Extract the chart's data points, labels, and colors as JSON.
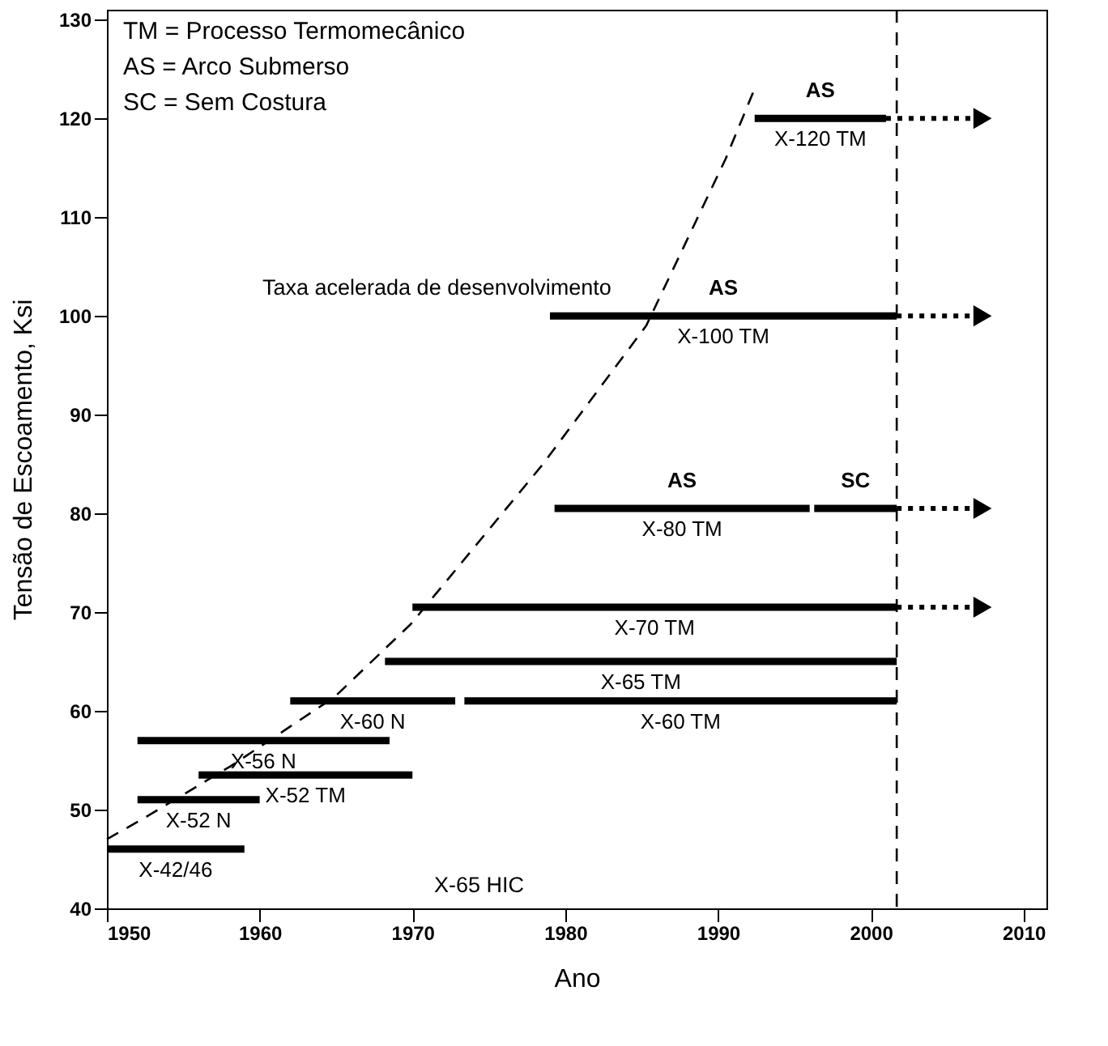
{
  "chart_data": {
    "type": "line",
    "xlabel": "Ano",
    "ylabel": "Tensão de Escoamento, Ksi",
    "xlim": [
      1950,
      2011.5
    ],
    "xticks": [
      1950,
      1960,
      1970,
      1980,
      1990,
      2000,
      2010
    ],
    "ylim": [
      40,
      131
    ],
    "yticks": [
      40,
      50,
      60,
      70,
      80,
      90,
      100,
      110,
      120,
      130
    ],
    "grid": false,
    "line_style": "solid",
    "marker": "none",
    "series": [
      {
        "name": "X-42/46",
        "color": "#000000",
        "x": [
          1950,
          1959
        ],
        "values": [
          46,
          46
        ]
      },
      {
        "name": "X-52 N",
        "color": "#000000",
        "x": [
          1952,
          1960
        ],
        "values": [
          51,
          51
        ]
      },
      {
        "name": "X-52 TM",
        "color": "#000000",
        "x": [
          1956,
          1970
        ],
        "values": [
          53.5,
          53.5
        ]
      },
      {
        "name": "X-56 N",
        "color": "#000000",
        "x": [
          1952,
          1968.5
        ],
        "values": [
          57,
          57
        ]
      },
      {
        "name": "X-60 N",
        "color": "#000000",
        "x": [
          1962,
          1972.8
        ],
        "values": [
          61,
          61
        ]
      },
      {
        "name": "X-60 TM",
        "color": "#000000",
        "x": [
          1973.4,
          2001.7
        ],
        "values": [
          61,
          61
        ]
      },
      {
        "name": "X-65 TM",
        "color": "#000000",
        "x": [
          1968.2,
          2001.7
        ],
        "values": [
          65,
          65
        ]
      },
      {
        "name": "X-70 TM",
        "color": "#000000",
        "x": [
          1970,
          2001.7
        ],
        "values": [
          70.5,
          70.5
        ]
      },
      {
        "color": "#000000",
        "x": [
          2001.7,
          2007
        ],
        "values": [
          70.5,
          70.5
        ],
        "line_style": "dotted",
        "marker": "triangle"
      },
      {
        "name": "X-80 TM",
        "color": "#000000",
        "x": [
          1979.3,
          1996
        ],
        "values": [
          80.5,
          80.5
        ]
      },
      {
        "color": "#000000",
        "x": [
          1996.3,
          2001.7
        ],
        "values": [
          80.5,
          80.5
        ]
      },
      {
        "color": "#000000",
        "x": [
          2001.7,
          2007
        ],
        "values": [
          80.5,
          80.5
        ],
        "line_style": "dotted",
        "marker": "triangle"
      },
      {
        "name": "X-100 TM",
        "color": "#000000",
        "x": [
          1979,
          2001.7
        ],
        "values": [
          100,
          100
        ]
      },
      {
        "color": "#000000",
        "x": [
          2001.7,
          2007
        ],
        "values": [
          100,
          100
        ],
        "line_style": "dotted",
        "marker": "triangle"
      },
      {
        "name": "X-120 TM",
        "color": "#000000",
        "x": [
          1992.4,
          2001
        ],
        "values": [
          120,
          120
        ]
      },
      {
        "color": "#000000",
        "x": [
          2001,
          2007
        ],
        "values": [
          120,
          120
        ],
        "line_style": "dotted",
        "marker": "triangle"
      },
      {
        "color": "#000000",
        "x": [
          1950,
          1952.5,
          1958.1,
          1964.9,
          1969.9,
          1978.5,
          1985.3,
          1990.5,
          1992.4
        ],
        "values": [
          47,
          49.2,
          54.4,
          61.4,
          68.8,
          84.9,
          99,
          115.9,
          123
        ],
        "line_style": "dashed"
      }
    ],
    "ref_lines": [
      {
        "axis": "x",
        "value": 2001.7,
        "color": "#000000",
        "line_style": "dashed"
      }
    ],
    "annotations": [
      "TM = Processo Termomecânico",
      "AS = Arco Submerso",
      "SC = Sem Costura",
      "Taxa acelerada de desenvolvimento",
      "X-65 HIC",
      {
        "text": "AS",
        "x": 1996.7,
        "y": 120
      },
      {
        "text": "AS",
        "x": 1990.35,
        "y": 100
      },
      {
        "text": "AS",
        "x": 1987.65,
        "y": 80.5
      },
      {
        "text": "SC",
        "x": 1999,
        "y": 80.5
      }
    ]
  }
}
